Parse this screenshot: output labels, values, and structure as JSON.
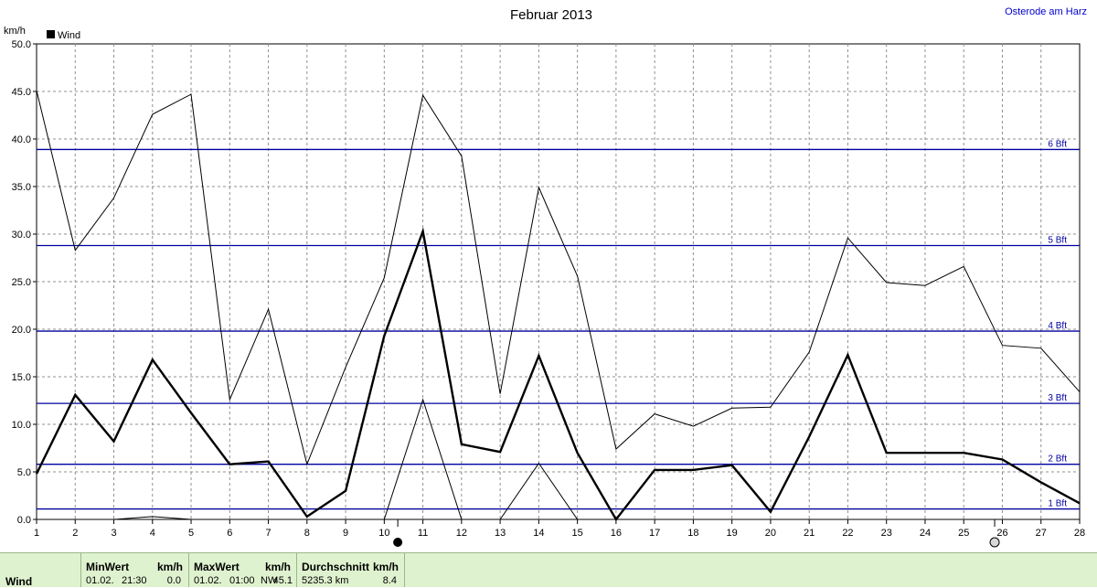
{
  "chart_data": {
    "type": "line",
    "title": "Februar 2013",
    "location": "Osterode am Harz",
    "ylabel": "km/h",
    "ylim": [
      0,
      50
    ],
    "yticks": [
      "0.0",
      "5.0",
      "10.0",
      "15.0",
      "20.0",
      "25.0",
      "30.0",
      "35.0",
      "40.0",
      "45.0",
      "50.0"
    ],
    "x": [
      1,
      2,
      3,
      4,
      5,
      6,
      7,
      8,
      9,
      10,
      11,
      12,
      13,
      14,
      15,
      16,
      17,
      18,
      19,
      20,
      21,
      22,
      23,
      24,
      25,
      26,
      27,
      28
    ],
    "grid": true,
    "legend": {
      "position": "top-left",
      "entries": [
        "Wind"
      ]
    },
    "series": [
      {
        "name": "Wind",
        "role": "mean",
        "values": [
          4.8,
          13.1,
          8.2,
          16.8,
          11.2,
          5.8,
          6.1,
          0.3,
          3.0,
          19.3,
          30.3,
          7.9,
          7.1,
          17.2,
          7.0,
          0.0,
          5.2,
          5.2,
          5.7,
          0.8,
          8.7,
          17.3,
          7.0,
          7.0,
          7.0,
          6.3,
          3.9,
          1.7
        ]
      },
      {
        "role": "max",
        "values": [
          45.1,
          28.3,
          33.8,
          42.6,
          44.7,
          12.6,
          22.1,
          5.8,
          16.0,
          25.4,
          44.6,
          38.2,
          13.2,
          34.9,
          25.6,
          7.4,
          11.1,
          9.8,
          11.7,
          11.8,
          17.6,
          29.6,
          24.9,
          24.6,
          26.6,
          18.3,
          18.0,
          13.4
        ]
      },
      {
        "role": "min",
        "values": [
          0,
          0,
          0,
          0.3,
          0,
          0,
          0,
          0,
          0,
          0,
          12.6,
          0,
          0,
          5.9,
          0,
          0,
          0,
          0,
          0,
          0,
          0,
          0,
          0,
          0,
          0,
          0,
          0,
          0
        ]
      }
    ],
    "beaufort_lines": [
      {
        "label": "1 Bft",
        "value": 1.1
      },
      {
        "label": "2 Bft",
        "value": 5.8
      },
      {
        "label": "3 Bft",
        "value": 12.2
      },
      {
        "label": "4 Bft",
        "value": 19.8
      },
      {
        "label": "5 Bft",
        "value": 28.8
      },
      {
        "label": "6 Bft",
        "value": 38.9
      }
    ],
    "moon_markers": [
      {
        "day": 10.35,
        "phase": "new"
      },
      {
        "day": 25.8,
        "phase": "full"
      }
    ]
  },
  "stats": {
    "name": "Wind",
    "min_header": "MinWert",
    "min_unit": "km/h",
    "min_date": "01.02.",
    "min_time": "21:30",
    "min_value": "0.0",
    "max_header": "MaxWert",
    "max_unit": "km/h",
    "max_date": "01.02.",
    "max_time": "01:00",
    "max_dir": "NW",
    "max_value": "45.1",
    "avg_header": "Durchschnitt",
    "avg_unit": "km/h",
    "avg_distance": "5235.3 km",
    "avg_value": "8.4"
  },
  "colors": {
    "mean": "#000000",
    "max": "#000000",
    "min": "#000000",
    "beaufort": "#0000a0",
    "location": "#0000cc",
    "footer_bg": "#dff2cf"
  }
}
